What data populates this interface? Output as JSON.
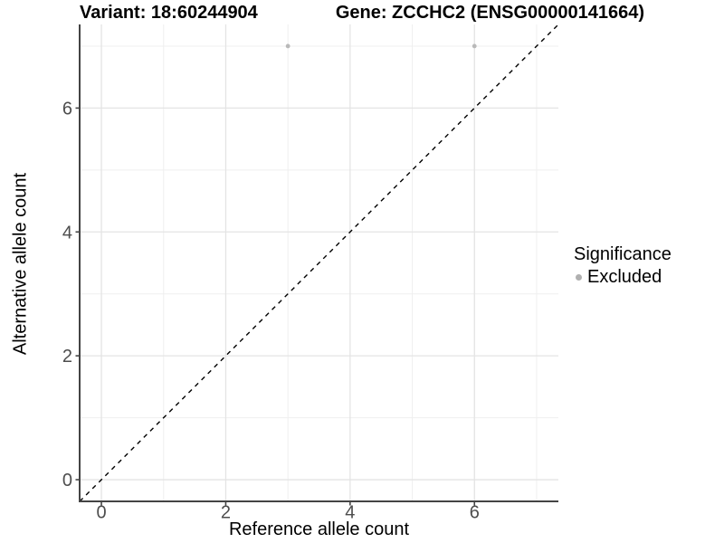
{
  "chart_data": {
    "type": "scatter",
    "title_left": "Variant: 18:60244904",
    "title_right": "Gene: ZCCHC2 (ENSG00000141664)",
    "xlabel": "Reference allele count",
    "ylabel": "Alternative allele count",
    "xlim": [
      -0.35,
      7.35
    ],
    "ylim": [
      -0.35,
      7.35
    ],
    "x_major_breaks": [
      0,
      2,
      4,
      6
    ],
    "y_major_breaks": [
      0,
      2,
      4,
      6
    ],
    "x_minor_breaks": [
      1,
      3,
      5,
      7
    ],
    "y_minor_breaks": [
      1,
      3,
      5,
      7
    ],
    "x_tick_labels": [
      "0",
      "2",
      "4",
      "6"
    ],
    "y_tick_labels": [
      "0",
      "2",
      "4",
      "6"
    ],
    "grid": "on",
    "identity_line": {
      "style": "dashed",
      "color": "#000000",
      "slope": 1,
      "intercept": 0
    },
    "series": [
      {
        "name": "Excluded",
        "color": "#b9b9b9",
        "points": [
          {
            "x": 3,
            "y": 7
          },
          {
            "x": 6,
            "y": 7
          }
        ]
      }
    ],
    "legend": {
      "title": "Significance",
      "position": "right",
      "entries": [
        {
          "label": "Excluded",
          "color": "#b0b0b0"
        }
      ]
    },
    "style": {
      "background": "#ffffff",
      "grid_major_color": "#e4e4e4",
      "grid_minor_color": "#efefef",
      "axis_line_color": "#444444",
      "tick_label_color": "#4d4d4d",
      "point_radius": 2.4,
      "legend_point_diameter": 7
    }
  }
}
